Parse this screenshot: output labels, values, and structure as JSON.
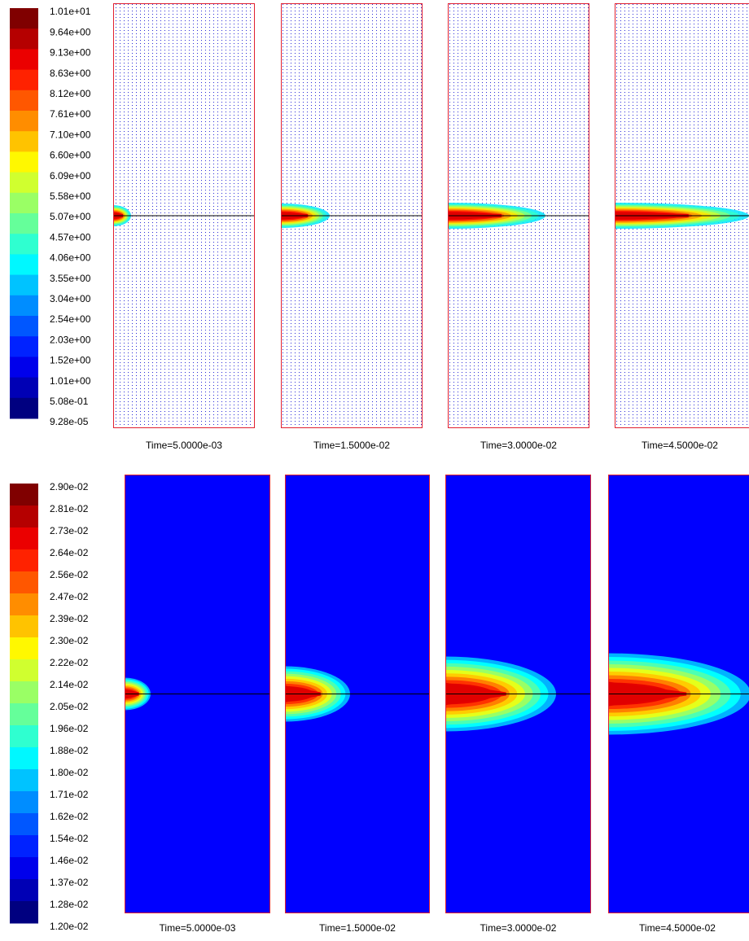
{
  "top_figure": {
    "legend": [
      "1.01e+01",
      "9.64e+00",
      "9.13e+00",
      "8.63e+00",
      "8.12e+00",
      "7.61e+00",
      "7.10e+00",
      "6.60e+00",
      "6.09e+00",
      "5.58e+00",
      "5.07e+00",
      "4.57e+00",
      "4.06e+00",
      "3.55e+00",
      "3.04e+00",
      "2.54e+00",
      "2.03e+00",
      "1.52e+00",
      "1.01e+00",
      "5.08e-01",
      "9.28e-05"
    ],
    "captions": [
      "Time=5.0000e-03",
      "Time=1.5000e-02",
      "Time=3.0000e-02",
      "Time=4.5000e-02"
    ]
  },
  "bottom_figure": {
    "legend": [
      "2.90e-02",
      "2.81e-02",
      "2.73e-02",
      "2.64e-02",
      "2.56e-02",
      "2.47e-02",
      "2.39e-02",
      "2.30e-02",
      "2.22e-02",
      "2.14e-02",
      "2.05e-02",
      "1.96e-02",
      "1.88e-02",
      "1.80e-02",
      "1.71e-02",
      "1.62e-02",
      "1.54e-02",
      "1.46e-02",
      "1.37e-02",
      "1.28e-02",
      "1.20e-02"
    ],
    "captions": [
      "Time=5.0000e-03",
      "Time=1.5000e-02",
      "Time=3.0000e-02",
      "Time=4.5000e-02"
    ]
  }
}
